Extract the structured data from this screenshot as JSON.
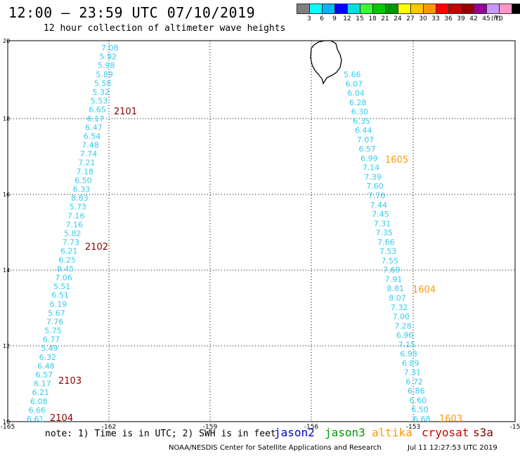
{
  "title": "12:00 – 23:59 UTC 07/10/2019",
  "subtitle": "12 hour collection of altimeter wave heights",
  "colorbar": {
    "colors": [
      "#7f7f7f",
      "#00ffff",
      "#00b4ff",
      "#0000ff",
      "#00e0e0",
      "#33ff33",
      "#00c800",
      "#009600",
      "#ffff00",
      "#ffc800",
      "#ff9600",
      "#ff0000",
      "#c80000",
      "#960000",
      "#960096",
      "#c896ff",
      "#ff96c8",
      "#000000"
    ],
    "labels": [
      "3",
      "6",
      "9",
      "12",
      "15",
      "18",
      "21",
      "24",
      "27",
      "30",
      "33",
      "36",
      "39",
      "42",
      "45",
      "70"
    ],
    "unit": "(ft)"
  },
  "axes": {
    "x_ticks": [
      "-165",
      "-162",
      "-159",
      "-156",
      "-153",
      "-15"
    ],
    "y_ticks": [
      "20",
      "18",
      "16",
      "14",
      "12",
      "10"
    ]
  },
  "tracks": {
    "west": {
      "color": "#33ccee",
      "values": [
        "7.08",
        "5.92",
        "5.98",
        "5.89",
        "5.58",
        "5.32",
        "5.53",
        "6.65",
        "6.17",
        "6.47",
        "6.54",
        "7.48",
        "7.74",
        "7.21",
        "7.18",
        "6.50",
        "6.33",
        "8.83",
        "5.73",
        "7.16",
        "7.16",
        "5.82",
        "7.73",
        "6.21",
        "6.25",
        "8.45",
        "7.06",
        "5.51",
        "6.51",
        "6.19",
        "5.67",
        "7.76",
        "5.75",
        "6.77",
        "5.49",
        "6.32",
        "6.48",
        "6.57",
        "6.17",
        "6.21",
        "6.08",
        "6.66",
        "6.61"
      ]
    },
    "east": {
      "color": "#33ccee",
      "values": [
        "5.66",
        "6.07",
        "6.04",
        "6.28",
        "6.30",
        "6.35",
        "6.44",
        "7.07",
        "6.57",
        "6.99",
        "7.14",
        "7.39",
        "7.60",
        "7.76",
        "7.44",
        "7.45",
        "7.31",
        "7.35",
        "7.66",
        "7.53",
        "7.55",
        "7.69",
        "7.91",
        "8.81",
        "8.07",
        "7.32",
        "7.00",
        "7.28",
        "6.96",
        "7.15",
        "6.98",
        "6.89",
        "7.31",
        "6.72",
        "6.86",
        "6.60",
        "6.50",
        "6.68"
      ]
    }
  },
  "time_labels": [
    {
      "text": "2101",
      "color": "#8b0000"
    },
    {
      "text": "2102",
      "color": "#8b0000"
    },
    {
      "text": "2103",
      "color": "#8b0000"
    },
    {
      "text": "2104",
      "color": "#8b0000"
    },
    {
      "text": "1605",
      "color": "#ff9900"
    },
    {
      "text": "1604",
      "color": "#ff9900"
    },
    {
      "text": "1603",
      "color": "#ff9900"
    }
  ],
  "footer": {
    "note": "note:  1) Time is in UTC;  2) SWH is in feet",
    "satellites": [
      {
        "name": "jason2",
        "color": "#0000cc"
      },
      {
        "name": "jason3",
        "color": "#009900"
      },
      {
        "name": "altika",
        "color": "#ff9900"
      },
      {
        "name": "cryosat",
        "color": "#cc0000"
      },
      {
        "name": "s3a",
        "color": "#8b0000"
      }
    ],
    "credit": "NOAA/NESDIS Center for Satellite Applications and Research",
    "timestamp": "Jul 11 12:27:53 UTC 2019"
  }
}
